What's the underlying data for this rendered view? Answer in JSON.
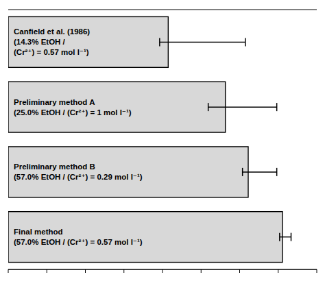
{
  "chart_data": {
    "type": "bar",
    "orientation": "horizontal",
    "categories": [
      [
        "Canfield et al. (1986)",
        "(14.3% EtOH /",
        "(Cr²⁺) = 0.57 mol l⁻¹)"
      ],
      [
        "Preliminary method A",
        "(25.0% EtOH / (Cr²⁺) = 1 mol l⁻¹)"
      ],
      [
        "Preliminary method B",
        "(57.0% EtOH / (Cr²⁺) = 0.29 mol l⁻¹)"
      ],
      [
        "Final method",
        "(57.0% EtOH / (Cr²⁺) = 0.57 mol l⁻¹)"
      ]
    ],
    "values": [
      56,
      76,
      84,
      96
    ],
    "means": [
      68,
      82,
      88,
      97
    ],
    "errors": [
      15,
      12,
      6,
      2
    ],
    "color": "#d8d8d8",
    "xlim": [
      0,
      108
    ],
    "xticks": [
      0,
      13.5,
      27,
      40.5,
      54,
      67.5,
      81,
      94.5,
      108
    ],
    "tick_labels": false,
    "grid": false
  }
}
